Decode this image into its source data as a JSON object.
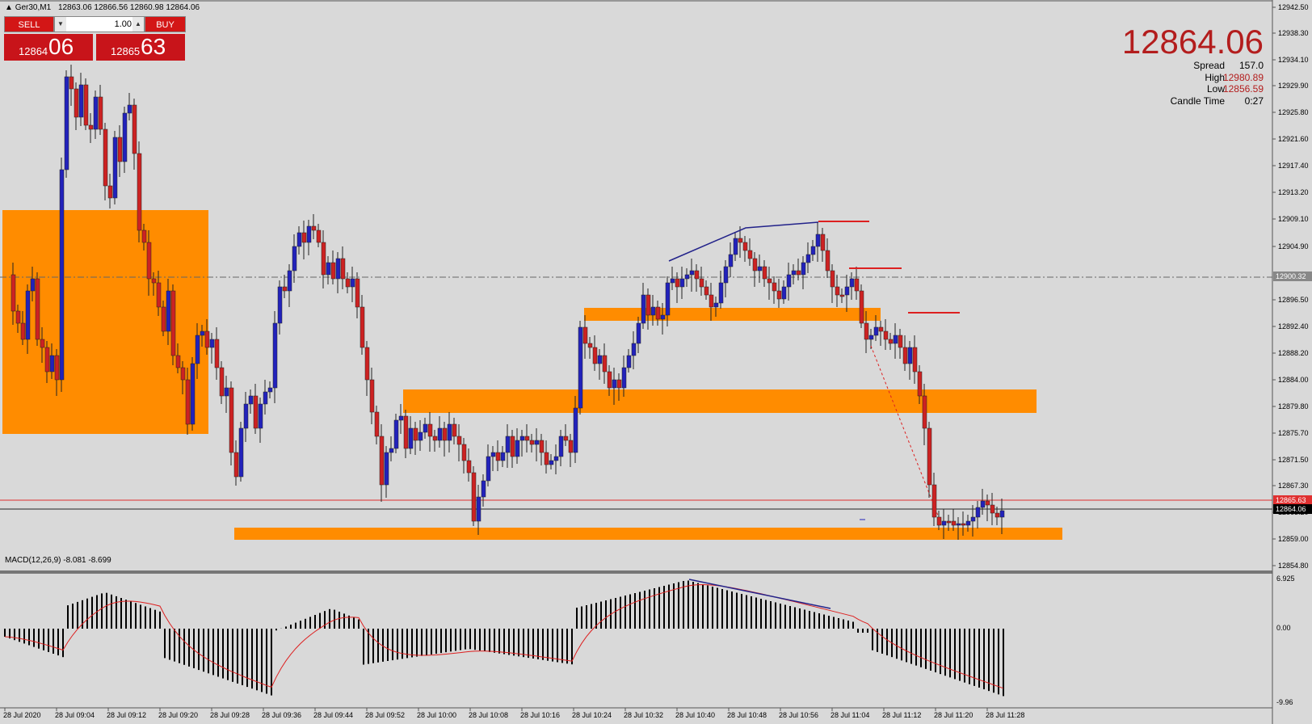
{
  "window": {
    "title": "Ger30,M1",
    "ohlc": "12863.06 12866.56 12860.98 12864.06"
  },
  "trade_panel": {
    "sell_label": "SELL",
    "buy_label": "BUY",
    "lot": "1.00",
    "bid_prefix": "12864",
    "bid_big": "06",
    "ask_prefix": "12865",
    "ask_big": "63",
    "down_arrow": "▼",
    "up_arrow": "▲"
  },
  "info": {
    "price": "12864.06",
    "spread_label": "Spread",
    "spread_value": "157.0",
    "high_label": "High",
    "high_value": "12980.89",
    "low_label": "Low",
    "low_value": "12856.59",
    "candle_label": "Candle Time",
    "candle_value": "0:27"
  },
  "price_axis": {
    "labels": [
      "12942.50",
      "12938.30",
      "12934.10",
      "12929.90",
      "12925.80",
      "12921.60",
      "12917.40",
      "12913.20",
      "12909.10",
      "12904.90",
      "12896.50",
      "12892.40",
      "12888.20",
      "12884.00",
      "12879.80",
      "12875.70",
      "12871.50",
      "12867.30",
      "12863.20",
      "12859.00",
      "12854.80"
    ],
    "marker_dash": "12900.32",
    "marker_ask": "12865.63",
    "marker_bid": "12864.06"
  },
  "macd": {
    "label": "MACD(12,26,9) -8.081 -8.699",
    "axis_labels": [
      "6.925",
      "0.00",
      "-9.96"
    ]
  },
  "time_axis": [
    "28 Jul 2020",
    "28 Jul 09:04",
    "28 Jul 09:12",
    "28 Jul 09:20",
    "28 Jul 09:28",
    "28 Jul 09:36",
    "28 Jul 09:44",
    "28 Jul 09:52",
    "28 Jul 10:00",
    "28 Jul 10:08",
    "28 Jul 10:16",
    "28 Jul 10:24",
    "28 Jul 10:32",
    "28 Jul 10:40",
    "28 Jul 10:48",
    "28 Jul 10:56",
    "28 Jul 11:04",
    "28 Jul 11:12",
    "28 Jul 11:20",
    "28 Jul 11:28"
  ],
  "colors": {
    "bull": "#2222bb",
    "bear": "#cc2222",
    "zone": "#ff8c00",
    "background": "#d9d9d9",
    "ask_line": "#e03030",
    "price_red": "#b31d1d"
  }
}
